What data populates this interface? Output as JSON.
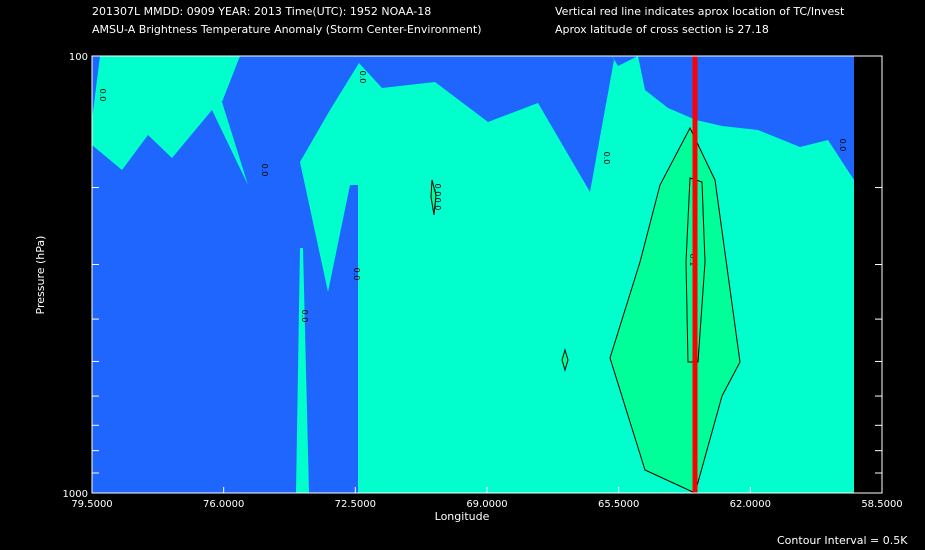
{
  "header": {
    "line1_left": "201307L  MMDD: 0909 YEAR: 2013 Time(UTC): 1952 NOAA-18",
    "line2_left": "AMSU-A Brightness Temperature Anomaly (Storm Center-Environment)",
    "line1_right": "Vertical red line indicates aprox location of TC/Invest",
    "line2_right": "Aprox latitude of cross section is 27.18"
  },
  "footer": {
    "contour_interval": "Contour Interval = 0.5K"
  },
  "colors": {
    "neg": "#1f66ff",
    "zero": "#00ffcc",
    "pos": "#00ff99",
    "tc_line": "#ff0000",
    "bg": "#000000"
  },
  "chart_data": {
    "type": "contour",
    "title": "AMSU-A Brightness Temperature Anomaly (Storm Center-Environment)",
    "xlabel": "Longitude",
    "ylabel": "Pressure (hPa)",
    "xlim": [
      79.5,
      58.5
    ],
    "ylim": [
      100,
      1000
    ],
    "y_scale": "log",
    "x_ticks": [
      "79.5000",
      "76.0000",
      "72.5000",
      "69.0000",
      "65.5000",
      "62.0000",
      "58.5000"
    ],
    "y_ticks": [
      "100",
      "1000"
    ],
    "tc_longitude": 63.4,
    "contour_interval": 0.5,
    "contour_labels": [
      "0.0",
      "0.0",
      "0.0",
      "0.0",
      "0.0",
      "0.0",
      "0.0",
      "0.0",
      "0.0",
      "0.1"
    ]
  }
}
